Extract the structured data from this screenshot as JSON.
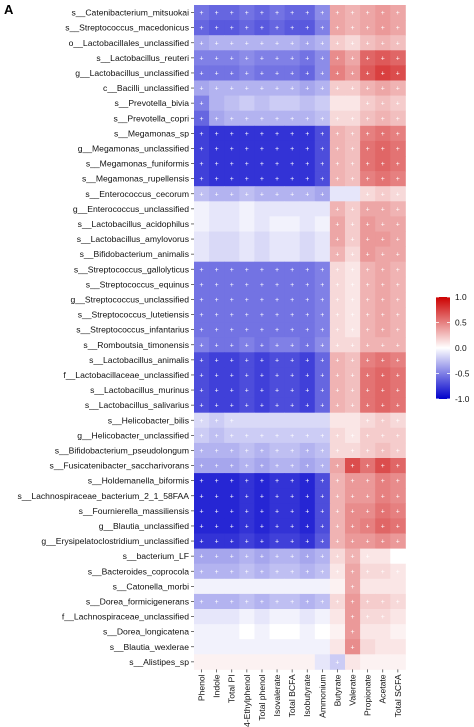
{
  "panel_label": "A",
  "chart_data": {
    "type": "heatmap",
    "rows": [
      "s__Catenibacterium_mitsuokai",
      "s__Streptococcus_macedonicus",
      "o__Lactobacillales_unclassified",
      "s__Lactobacillus_reuteri",
      "g__Lactobacillus_unclassified",
      "c__Bacilli_unclassified",
      "s__Prevotella_bivia",
      "s__Prevotella_copri",
      "s__Megamonas_sp",
      "g__Megamonas_unclassified",
      "s__Megamonas_funiformis",
      "s__Megamonas_rupellensis",
      "s__Enterococcus_cecorum",
      "g__Enterococcus_unclassified",
      "s__Lactobacillus_acidophilus",
      "s__Lactobacillus_amylovorus",
      "s__Bifidobacterium_animalis",
      "s__Streptococcus_gallolyticus",
      "s__Streptococcus_equinus",
      "g__Streptococcus_unclassified",
      "s__Streptococcus_lutetiensis",
      "s__Streptococcus_infantarius",
      "s__Romboutsia_timonensis",
      "s__Lactobacillus_animalis",
      "f__Lactobacillaceae_unclassified",
      "s__Lactobacillus_murinus",
      "s__Lactobacillus_salivarius",
      "s__Helicobacter_bilis",
      "g__Helicobacter_unclassified",
      "s__Bifidobacterium_pseudolongum",
      "s__Fusicatenibacter_saccharivorans",
      "s__Holdemanella_biformis",
      "s__Lachnospiraceae_bacterium_2_1_58FAA",
      "s__Fournierella_massiliensis",
      "g__Blautia_unclassified",
      "g__Erysipelatoclostridium_unclassified",
      "s__bacterium_LF",
      "s__Bacteroides_coprocola",
      "s__Catonella_morbi",
      "s__Dorea_formicigenerans",
      "f__Lachnospiraceae_unclassified",
      "s__Dorea_longicatena",
      "s__Blautia_wexlerae",
      "s__Alistipes_sp"
    ],
    "columns": [
      "Phenol",
      "Indole",
      "Total PI",
      "4-Ethylphenol",
      "Total phenol",
      "Isovalerate",
      "Total BCFA",
      "Isobutyrate",
      "Ammonium",
      "Butyrate",
      "Valerate",
      "Propionate",
      "Acetate",
      "Total SCFA"
    ],
    "values": [
      [
        -0.55,
        -0.6,
        -0.6,
        -0.55,
        -0.6,
        -0.55,
        -0.6,
        -0.6,
        -0.45,
        0.35,
        0.3,
        0.35,
        0.4,
        0.35
      ],
      [
        -0.6,
        -0.65,
        -0.65,
        -0.6,
        -0.65,
        -0.6,
        -0.65,
        -0.65,
        -0.5,
        0.35,
        0.3,
        0.35,
        0.4,
        0.35
      ],
      [
        -0.35,
        -0.3,
        -0.3,
        -0.3,
        -0.3,
        -0.3,
        -0.3,
        -0.35,
        -0.3,
        0.2,
        0.15,
        0.25,
        0.3,
        0.25
      ],
      [
        -0.5,
        -0.5,
        -0.5,
        -0.45,
        -0.5,
        -0.5,
        -0.5,
        -0.55,
        -0.45,
        0.45,
        0.35,
        0.6,
        0.65,
        0.6
      ],
      [
        -0.55,
        -0.55,
        -0.55,
        -0.5,
        -0.55,
        -0.55,
        -0.55,
        -0.6,
        -0.45,
        0.5,
        0.4,
        0.65,
        0.75,
        0.7
      ],
      [
        -0.35,
        -0.3,
        -0.3,
        -0.3,
        -0.3,
        -0.3,
        -0.3,
        -0.35,
        -0.3,
        0.2,
        0.2,
        0.3,
        0.35,
        0.3
      ],
      [
        -0.5,
        -0.3,
        -0.25,
        -0.2,
        -0.25,
        -0.2,
        -0.2,
        -0.25,
        -0.2,
        0.1,
        0.1,
        0.2,
        0.25,
        0.2
      ],
      [
        -0.6,
        -0.35,
        -0.3,
        -0.3,
        -0.3,
        -0.3,
        -0.3,
        -0.3,
        -0.25,
        0.15,
        0.15,
        0.25,
        0.3,
        0.25
      ],
      [
        -0.75,
        -0.8,
        -0.8,
        -0.8,
        -0.8,
        -0.8,
        -0.8,
        -0.8,
        -0.7,
        0.3,
        0.25,
        0.5,
        0.55,
        0.5
      ],
      [
        -0.75,
        -0.8,
        -0.8,
        -0.8,
        -0.8,
        -0.8,
        -0.8,
        -0.8,
        -0.7,
        0.3,
        0.25,
        0.55,
        0.6,
        0.55
      ],
      [
        -0.75,
        -0.8,
        -0.8,
        -0.8,
        -0.8,
        -0.8,
        -0.8,
        -0.8,
        -0.7,
        0.3,
        0.25,
        0.55,
        0.6,
        0.55
      ],
      [
        -0.75,
        -0.8,
        -0.8,
        -0.8,
        -0.8,
        -0.8,
        -0.8,
        -0.8,
        -0.7,
        0.3,
        0.25,
        0.5,
        0.55,
        0.5
      ],
      [
        -0.25,
        -0.3,
        -0.3,
        -0.25,
        -0.3,
        -0.3,
        -0.3,
        -0.3,
        -0.35,
        -0.1,
        -0.1,
        0.15,
        0.2,
        0.15
      ],
      [
        -0.05,
        -0.1,
        -0.1,
        -0.05,
        -0.1,
        -0.1,
        -0.1,
        -0.1,
        -0.1,
        0.3,
        0.2,
        0.35,
        0.35,
        0.3
      ],
      [
        -0.05,
        -0.1,
        -0.1,
        -0.05,
        -0.1,
        -0.05,
        -0.05,
        -0.1,
        -0.05,
        0.35,
        0.2,
        0.4,
        0.35,
        0.35
      ],
      [
        -0.1,
        -0.15,
        -0.15,
        -0.1,
        -0.15,
        -0.1,
        -0.1,
        -0.15,
        -0.1,
        0.35,
        0.2,
        0.4,
        0.4,
        0.35
      ],
      [
        -0.1,
        -0.15,
        -0.15,
        -0.1,
        -0.15,
        -0.1,
        -0.1,
        -0.15,
        -0.1,
        0.3,
        0.15,
        0.4,
        0.35,
        0.35
      ],
      [
        -0.55,
        -0.55,
        -0.55,
        -0.55,
        -0.55,
        -0.55,
        -0.55,
        -0.55,
        -0.5,
        0.15,
        0.1,
        0.3,
        0.35,
        0.3
      ],
      [
        -0.55,
        -0.55,
        -0.55,
        -0.55,
        -0.55,
        -0.55,
        -0.55,
        -0.55,
        -0.5,
        0.15,
        0.1,
        0.3,
        0.35,
        0.3
      ],
      [
        -0.55,
        -0.55,
        -0.55,
        -0.55,
        -0.55,
        -0.55,
        -0.55,
        -0.55,
        -0.5,
        0.15,
        0.1,
        0.3,
        0.35,
        0.3
      ],
      [
        -0.55,
        -0.55,
        -0.55,
        -0.55,
        -0.55,
        -0.55,
        -0.55,
        -0.55,
        -0.5,
        0.15,
        0.1,
        0.3,
        0.35,
        0.3
      ],
      [
        -0.55,
        -0.55,
        -0.55,
        -0.55,
        -0.55,
        -0.55,
        -0.55,
        -0.55,
        -0.5,
        0.15,
        0.1,
        0.3,
        0.35,
        0.3
      ],
      [
        -0.5,
        -0.55,
        -0.55,
        -0.5,
        -0.55,
        -0.5,
        -0.5,
        -0.55,
        -0.45,
        0.15,
        0.15,
        0.3,
        0.3,
        0.3
      ],
      [
        -0.7,
        -0.75,
        -0.75,
        -0.7,
        -0.75,
        -0.7,
        -0.7,
        -0.75,
        -0.6,
        0.3,
        0.25,
        0.5,
        0.55,
        0.5
      ],
      [
        -0.7,
        -0.75,
        -0.75,
        -0.7,
        -0.75,
        -0.7,
        -0.7,
        -0.75,
        -0.6,
        0.3,
        0.25,
        0.55,
        0.6,
        0.55
      ],
      [
        -0.7,
        -0.75,
        -0.75,
        -0.7,
        -0.75,
        -0.7,
        -0.7,
        -0.75,
        -0.6,
        0.3,
        0.25,
        0.55,
        0.6,
        0.55
      ],
      [
        -0.7,
        -0.75,
        -0.75,
        -0.7,
        -0.75,
        -0.7,
        -0.7,
        -0.75,
        -0.6,
        0.3,
        0.25,
        0.55,
        0.6,
        0.55
      ],
      [
        -0.15,
        -0.2,
        -0.15,
        -0.15,
        -0.15,
        -0.15,
        -0.15,
        -0.15,
        -0.15,
        0.1,
        0.1,
        0.15,
        0.2,
        0.15
      ],
      [
        -0.2,
        -0.25,
        -0.2,
        -0.2,
        -0.2,
        -0.2,
        -0.2,
        -0.2,
        -0.2,
        0.15,
        0.1,
        0.2,
        0.2,
        0.2
      ],
      [
        -0.3,
        -0.3,
        -0.3,
        -0.25,
        -0.3,
        -0.25,
        -0.25,
        -0.3,
        -0.25,
        0.15,
        0.15,
        0.2,
        0.25,
        0.2
      ],
      [
        -0.35,
        -0.35,
        -0.35,
        -0.3,
        -0.35,
        -0.3,
        -0.3,
        -0.35,
        -0.3,
        0.35,
        0.7,
        0.55,
        0.7,
        0.6
      ],
      [
        -0.85,
        -0.85,
        -0.85,
        -0.8,
        -0.85,
        -0.8,
        -0.8,
        -0.85,
        -0.7,
        0.3,
        0.4,
        0.4,
        0.5,
        0.45
      ],
      [
        -0.85,
        -0.85,
        -0.85,
        -0.8,
        -0.85,
        -0.8,
        -0.8,
        -0.85,
        -0.7,
        0.3,
        0.4,
        0.4,
        0.5,
        0.45
      ],
      [
        -0.85,
        -0.85,
        -0.85,
        -0.8,
        -0.85,
        -0.8,
        -0.8,
        -0.85,
        -0.7,
        0.3,
        0.45,
        0.45,
        0.55,
        0.5
      ],
      [
        -0.85,
        -0.85,
        -0.85,
        -0.8,
        -0.85,
        -0.8,
        -0.8,
        -0.85,
        -0.7,
        0.3,
        0.45,
        0.5,
        0.6,
        0.55
      ],
      [
        -0.8,
        -0.8,
        -0.8,
        -0.75,
        -0.8,
        -0.75,
        -0.75,
        -0.8,
        -0.65,
        0.3,
        0.4,
        0.4,
        0.45,
        0.4
      ],
      [
        -0.35,
        -0.35,
        -0.35,
        -0.3,
        -0.35,
        -0.3,
        -0.3,
        -0.35,
        -0.3,
        0.15,
        0.3,
        0.1,
        0.1,
        0.0
      ],
      [
        -0.3,
        -0.3,
        -0.3,
        -0.25,
        -0.3,
        -0.25,
        -0.25,
        -0.3,
        -0.25,
        0.1,
        0.35,
        0.15,
        0.15,
        0.1
      ],
      [
        -0.05,
        -0.05,
        -0.05,
        -0.05,
        -0.05,
        -0.05,
        -0.05,
        -0.05,
        -0.05,
        0.05,
        0.35,
        0.1,
        0.1,
        0.1
      ],
      [
        -0.3,
        -0.3,
        -0.3,
        -0.25,
        -0.3,
        -0.25,
        -0.25,
        -0.3,
        -0.25,
        0.15,
        0.4,
        0.2,
        0.2,
        0.15
      ],
      [
        -0.1,
        -0.1,
        -0.1,
        -0.05,
        -0.1,
        -0.05,
        -0.05,
        -0.1,
        -0.05,
        0.1,
        0.4,
        0.15,
        0.15,
        0.1
      ],
      [
        -0.05,
        -0.05,
        -0.05,
        0.0,
        -0.05,
        0.0,
        0.0,
        -0.05,
        0.0,
        0.05,
        0.4,
        0.1,
        0.1,
        0.05
      ],
      [
        -0.05,
        -0.05,
        -0.05,
        -0.05,
        -0.05,
        -0.05,
        -0.05,
        -0.05,
        -0.05,
        0.1,
        0.45,
        0.15,
        0.1,
        0.1
      ],
      [
        0.05,
        0.05,
        0.05,
        0.05,
        0.05,
        0.05,
        0.05,
        0.05,
        -0.1,
        -0.2,
        0.1,
        0.05,
        0.05,
        0.05
      ]
    ],
    "significant": [
      [
        1,
        1,
        1,
        1,
        1,
        1,
        1,
        1,
        1,
        1,
        1,
        1,
        1,
        1
      ],
      [
        1,
        1,
        1,
        1,
        1,
        1,
        1,
        1,
        1,
        1,
        1,
        1,
        1,
        1
      ],
      [
        1,
        1,
        1,
        1,
        1,
        1,
        1,
        1,
        1,
        1,
        1,
        1,
        1,
        1
      ],
      [
        1,
        1,
        1,
        1,
        1,
        1,
        1,
        1,
        1,
        1,
        1,
        1,
        1,
        1
      ],
      [
        1,
        1,
        1,
        1,
        1,
        1,
        1,
        1,
        1,
        1,
        1,
        1,
        1,
        1
      ],
      [
        1,
        1,
        1,
        1,
        1,
        1,
        1,
        1,
        1,
        1,
        1,
        1,
        1,
        1
      ],
      [
        1,
        0,
        0,
        0,
        0,
        0,
        0,
        0,
        0,
        0,
        0,
        1,
        1,
        1
      ],
      [
        1,
        1,
        1,
        1,
        1,
        1,
        1,
        1,
        1,
        1,
        1,
        1,
        1,
        1
      ],
      [
        1,
        1,
        1,
        1,
        1,
        1,
        1,
        1,
        1,
        1,
        1,
        1,
        1,
        1
      ],
      [
        1,
        1,
        1,
        1,
        1,
        1,
        1,
        1,
        1,
        1,
        1,
        1,
        1,
        1
      ],
      [
        1,
        1,
        1,
        1,
        1,
        1,
        1,
        1,
        1,
        1,
        1,
        1,
        1,
        1
      ],
      [
        1,
        1,
        1,
        1,
        1,
        1,
        1,
        1,
        1,
        1,
        1,
        1,
        1,
        1
      ],
      [
        1,
        1,
        1,
        1,
        1,
        1,
        1,
        1,
        1,
        0,
        0,
        1,
        1,
        1
      ],
      [
        0,
        0,
        0,
        0,
        0,
        0,
        0,
        0,
        0,
        1,
        1,
        1,
        1,
        1
      ],
      [
        0,
        0,
        0,
        0,
        0,
        0,
        0,
        0,
        0,
        1,
        1,
        1,
        1,
        1
      ],
      [
        0,
        0,
        0,
        0,
        0,
        0,
        0,
        0,
        0,
        1,
        1,
        1,
        1,
        1
      ],
      [
        0,
        0,
        0,
        0,
        0,
        0,
        0,
        0,
        0,
        1,
        1,
        1,
        1,
        1
      ],
      [
        1,
        1,
        1,
        1,
        1,
        1,
        1,
        1,
        1,
        1,
        1,
        1,
        1,
        1
      ],
      [
        1,
        1,
        1,
        1,
        1,
        1,
        1,
        1,
        1,
        1,
        1,
        1,
        1,
        1
      ],
      [
        1,
        1,
        1,
        1,
        1,
        1,
        1,
        1,
        1,
        1,
        1,
        1,
        1,
        1
      ],
      [
        1,
        1,
        1,
        1,
        1,
        1,
        1,
        1,
        1,
        1,
        1,
        1,
        1,
        1
      ],
      [
        1,
        1,
        1,
        1,
        1,
        1,
        1,
        1,
        1,
        1,
        1,
        1,
        1,
        1
      ],
      [
        1,
        1,
        1,
        1,
        1,
        1,
        1,
        1,
        1,
        1,
        1,
        1,
        1,
        1
      ],
      [
        1,
        1,
        1,
        1,
        1,
        1,
        1,
        1,
        1,
        1,
        1,
        1,
        1,
        1
      ],
      [
        1,
        1,
        1,
        1,
        1,
        1,
        1,
        1,
        1,
        1,
        1,
        1,
        1,
        1
      ],
      [
        1,
        1,
        1,
        1,
        1,
        1,
        1,
        1,
        1,
        1,
        1,
        1,
        1,
        1
      ],
      [
        1,
        1,
        1,
        1,
        1,
        1,
        1,
        1,
        1,
        1,
        1,
        1,
        1,
        1
      ],
      [
        1,
        1,
        1,
        0,
        0,
        0,
        0,
        0,
        0,
        0,
        0,
        1,
        1,
        1
      ],
      [
        1,
        1,
        1,
        1,
        1,
        1,
        1,
        1,
        1,
        1,
        1,
        1,
        1,
        1
      ],
      [
        1,
        1,
        1,
        1,
        1,
        1,
        1,
        1,
        1,
        1,
        1,
        1,
        1,
        1
      ],
      [
        1,
        1,
        1,
        1,
        1,
        1,
        1,
        1,
        1,
        1,
        1,
        1,
        1,
        1
      ],
      [
        1,
        1,
        1,
        1,
        1,
        1,
        1,
        1,
        1,
        1,
        1,
        1,
        1,
        1
      ],
      [
        1,
        1,
        1,
        1,
        1,
        1,
        1,
        1,
        1,
        1,
        1,
        1,
        1,
        1
      ],
      [
        1,
        1,
        1,
        1,
        1,
        1,
        1,
        1,
        1,
        1,
        1,
        1,
        1,
        1
      ],
      [
        1,
        1,
        1,
        1,
        1,
        1,
        1,
        1,
        1,
        1,
        1,
        1,
        1,
        1
      ],
      [
        1,
        1,
        1,
        1,
        1,
        1,
        1,
        1,
        1,
        1,
        1,
        1,
        1,
        1
      ],
      [
        1,
        1,
        1,
        1,
        1,
        1,
        1,
        1,
        1,
        1,
        1,
        1,
        0,
        0
      ],
      [
        1,
        1,
        1,
        1,
        1,
        1,
        1,
        1,
        1,
        1,
        1,
        1,
        1,
        1
      ],
      [
        0,
        0,
        0,
        0,
        0,
        0,
        0,
        0,
        0,
        0,
        1,
        0,
        0,
        0
      ],
      [
        1,
        1,
        1,
        1,
        1,
        1,
        1,
        1,
        1,
        1,
        1,
        1,
        1,
        1
      ],
      [
        0,
        0,
        0,
        0,
        0,
        0,
        0,
        0,
        0,
        0,
        1,
        1,
        1,
        0
      ],
      [
        0,
        0,
        0,
        0,
        0,
        0,
        0,
        0,
        0,
        0,
        1,
        0,
        0,
        0
      ],
      [
        0,
        0,
        0,
        0,
        0,
        0,
        0,
        0,
        0,
        0,
        1,
        0,
        0,
        0
      ],
      [
        0,
        0,
        0,
        0,
        0,
        0,
        0,
        0,
        0,
        1,
        0,
        0,
        0,
        0
      ]
    ],
    "marker": "+",
    "colorbar": {
      "range": [
        -1.0,
        1.0
      ],
      "ticks": [
        "1.0",
        "0.5",
        "0.0",
        "-0.5",
        "-1.0"
      ],
      "tick_values": [
        1.0,
        0.5,
        0.0,
        -0.5,
        -1.0
      ]
    },
    "colors": {
      "negative": "#0000cc",
      "zero": "#ffffff",
      "positive": "#cc0000"
    },
    "legend_position": "right",
    "grid": false
  }
}
